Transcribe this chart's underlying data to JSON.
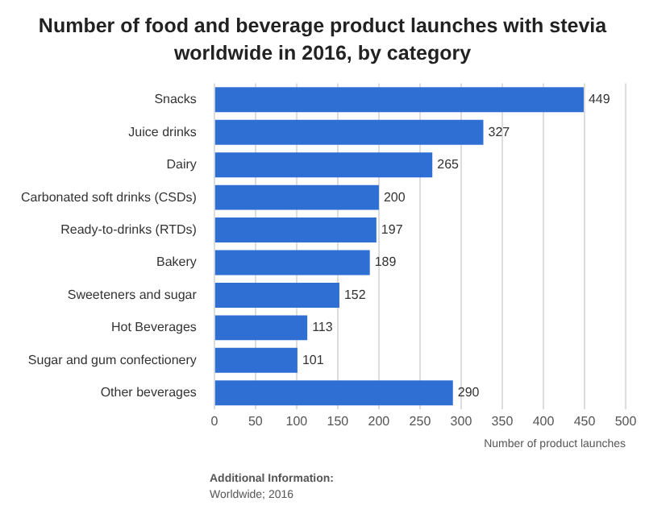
{
  "chart_data": {
    "type": "bar",
    "orientation": "horizontal",
    "title": "Number of food and beverage product launches with stevia worldwide in 2016, by category",
    "categories": [
      "Snacks",
      "Juice drinks",
      "Dairy",
      "Carbonated soft drinks (CSDs)",
      "Ready-to-drinks (RTDs)",
      "Bakery",
      "Sweeteners and sugar",
      "Hot Beverages",
      "Sugar and gum confectionery",
      "Other beverages"
    ],
    "values": [
      449,
      327,
      265,
      200,
      197,
      189,
      152,
      113,
      101,
      290
    ],
    "color": "#2f6ed3",
    "xlim": [
      0,
      500
    ],
    "xticks": [
      0,
      50,
      100,
      150,
      200,
      250,
      300,
      350,
      400,
      450,
      500
    ],
    "xlabel": "Number of product launches",
    "grid": "x",
    "data_labels": true,
    "annotations": [
      "Additional Information:",
      "Worldwide; 2016"
    ]
  }
}
